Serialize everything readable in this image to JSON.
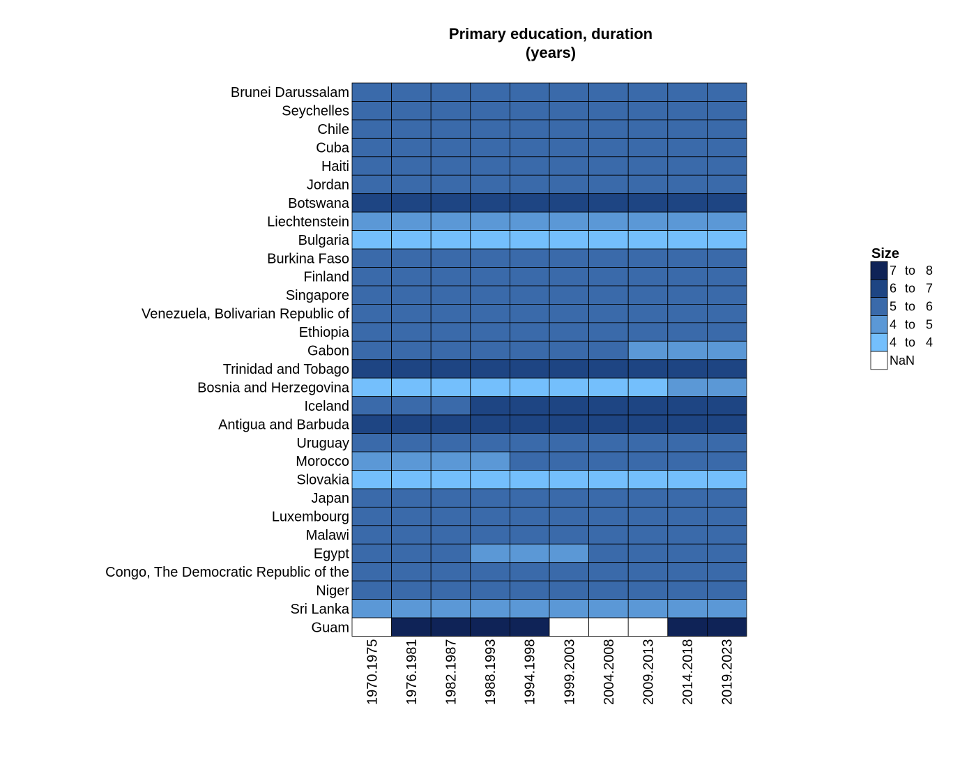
{
  "chart_data": {
    "type": "heatmap",
    "title_lines": [
      "Primary education, duration",
      "(years)"
    ],
    "rows": [
      "Brunei Darussalam",
      "Seychelles",
      "Chile",
      "Cuba",
      "Haiti",
      "Jordan",
      "Botswana",
      "Liechtenstein",
      "Bulgaria",
      "Burkina Faso",
      "Finland",
      "Singapore",
      "Venezuela, Bolivarian Republic of",
      "Ethiopia",
      "Gabon",
      "Trinidad and Tobago",
      "Bosnia and Herzegovina",
      "Iceland",
      "Antigua and Barbuda",
      "Uruguay",
      "Morocco",
      "Slovakia",
      "Japan",
      "Luxembourg",
      "Malawi",
      "Egypt",
      "Congo, The Democratic Republic of the",
      "Niger",
      "Sri Lanka",
      "Guam"
    ],
    "columns": [
      "1970.1975",
      "1976.1981",
      "1982.1987",
      "1988.1993",
      "1994.1998",
      "1999.2003",
      "2004.2008",
      "2009.2013",
      "2014.2018",
      "2019.2023"
    ],
    "values": [
      [
        6,
        6,
        6,
        6,
        6,
        6,
        6,
        6,
        6,
        6
      ],
      [
        6,
        6,
        6,
        6,
        6,
        6,
        6,
        6,
        6,
        6
      ],
      [
        6,
        6,
        6,
        6,
        6,
        6,
        6,
        6,
        6,
        6
      ],
      [
        6,
        6,
        6,
        6,
        6,
        6,
        6,
        6,
        6,
        6
      ],
      [
        6,
        6,
        6,
        6,
        6,
        6,
        6,
        6,
        6,
        6
      ],
      [
        6,
        6,
        6,
        6,
        6,
        6,
        6,
        6,
        6,
        6
      ],
      [
        7,
        7,
        7,
        7,
        7,
        7,
        7,
        7,
        7,
        7
      ],
      [
        5,
        5,
        5,
        5,
        5,
        5,
        5,
        5,
        5,
        5
      ],
      [
        4,
        4,
        4,
        4,
        4,
        4,
        4,
        4,
        4,
        4
      ],
      [
        6,
        6,
        6,
        6,
        6,
        6,
        6,
        6,
        6,
        6
      ],
      [
        6,
        6,
        6,
        6,
        6,
        6,
        6,
        6,
        6,
        6
      ],
      [
        6,
        6,
        6,
        6,
        6,
        6,
        6,
        6,
        6,
        6
      ],
      [
        6,
        6,
        6,
        6,
        6,
        6,
        6,
        6,
        6,
        6
      ],
      [
        6,
        6,
        6,
        6,
        6,
        6,
        6,
        6,
        6,
        6
      ],
      [
        6,
        6,
        6,
        6,
        6,
        6,
        6,
        5,
        5,
        5
      ],
      [
        7,
        7,
        7,
        7,
        7,
        7,
        7,
        7,
        7,
        7
      ],
      [
        4,
        4,
        4,
        4,
        4,
        4,
        4,
        4,
        5,
        5
      ],
      [
        6,
        6,
        6,
        7,
        7,
        7,
        7,
        7,
        7,
        7
      ],
      [
        7,
        7,
        7,
        7,
        7,
        7,
        7,
        7,
        7,
        7
      ],
      [
        6,
        6,
        6,
        6,
        6,
        6,
        6,
        6,
        6,
        6
      ],
      [
        5,
        5,
        5,
        5,
        6,
        6,
        6,
        6,
        6,
        6
      ],
      [
        4,
        4,
        4,
        4,
        4,
        4,
        4,
        4,
        4,
        4
      ],
      [
        6,
        6,
        6,
        6,
        6,
        6,
        6,
        6,
        6,
        6
      ],
      [
        6,
        6,
        6,
        6,
        6,
        6,
        6,
        6,
        6,
        6
      ],
      [
        6,
        6,
        6,
        6,
        6,
        6,
        6,
        6,
        6,
        6
      ],
      [
        6,
        6,
        6,
        5,
        5,
        5,
        6,
        6,
        6,
        6
      ],
      [
        6,
        6,
        6,
        6,
        6,
        6,
        6,
        6,
        6,
        6
      ],
      [
        6,
        6,
        6,
        6,
        6,
        6,
        6,
        6,
        6,
        6
      ],
      [
        5,
        5,
        5,
        5,
        5,
        5,
        5,
        5,
        5,
        5
      ],
      [
        null,
        8,
        8,
        8,
        8,
        null,
        null,
        null,
        8,
        8
      ]
    ],
    "legend": {
      "title": "Size",
      "placement": "right",
      "items": [
        {
          "from": "7",
          "to": "8",
          "color": "#0f2357",
          "min": 7.5
        },
        {
          "from": "6",
          "to": "7",
          "color": "#1e4583",
          "min": 6.5
        },
        {
          "from": "5",
          "to": "6",
          "color": "#3a6aaa",
          "min": 5.5
        },
        {
          "from": "4",
          "to": "5",
          "color": "#5b98d6",
          "min": 4.5
        },
        {
          "from": "4",
          "to": "4",
          "color": "#74bffc",
          "min": 0
        }
      ],
      "sep": "to",
      "nan_label": "NaN",
      "nan_color": "#ffffff"
    }
  }
}
